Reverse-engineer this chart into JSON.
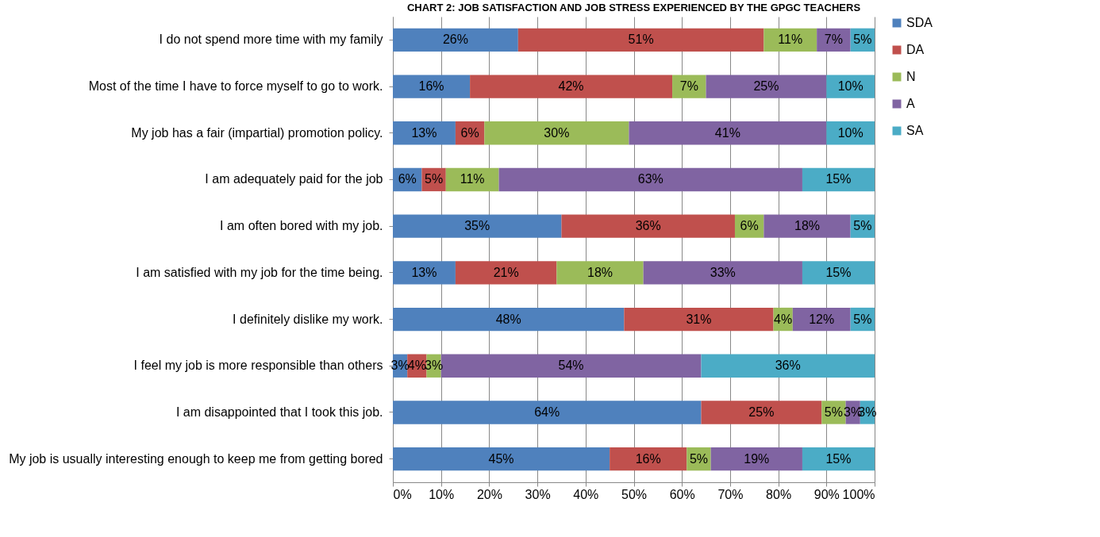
{
  "chart_data": {
    "type": "bar",
    "orientation": "horizontal",
    "stacked": true,
    "title": "CHART 2: JOB SATISFACTION AND JOB STRESS EXPERIENCED BY THE GPGC TEACHERS",
    "categories": [
      "I do not spend more time with my family",
      "Most of the time I have to force myself to go to work.",
      "My job has a fair (impartial) promotion policy.",
      "I am adequately paid for the job",
      "I am often bored with my job.",
      "I am satisfied with my job for the time being.",
      "I definitely dislike my work.",
      "I feel my job is more responsible than others",
      "I am disappointed that I took this job.",
      "My job is usually interesting enough to keep me from getting bored"
    ],
    "series": [
      {
        "name": "SDA",
        "color": "#4f81bd",
        "values": [
          26,
          16,
          13,
          6,
          35,
          13,
          48,
          3,
          64,
          45
        ],
        "value_labels": [
          "26%",
          "16%",
          "13%",
          "6%",
          "35%",
          "13%",
          "48%",
          "3%",
          "64%",
          "45%"
        ]
      },
      {
        "name": "DA",
        "color": "#c0504d",
        "values": [
          51,
          42,
          6,
          5,
          36,
          21,
          31,
          4,
          25,
          16
        ],
        "value_labels": [
          "51%",
          "42%",
          "6%",
          "5%",
          "36%",
          "21%",
          "31%",
          "4%",
          "25%",
          "16%"
        ]
      },
      {
        "name": "N",
        "color": "#9bbb59",
        "values": [
          11,
          7,
          30,
          11,
          6,
          18,
          4,
          3,
          5,
          5
        ],
        "value_labels": [
          "11%",
          "7%",
          "30%",
          "11%",
          "6%",
          "18%",
          "4%",
          "3%",
          "5%",
          "5%"
        ]
      },
      {
        "name": "A",
        "color": "#8064a2",
        "values": [
          7,
          25,
          41,
          63,
          18,
          33,
          12,
          54,
          3,
          19
        ],
        "value_labels": [
          "7%",
          "25%",
          "41%",
          "63%",
          "18%",
          "33%",
          "12%",
          "54%",
          "3%",
          "19%"
        ]
      },
      {
        "name": "SA",
        "color": "#4bacc6",
        "values": [
          5,
          10,
          10,
          15,
          5,
          15,
          5,
          36,
          3,
          15
        ],
        "value_labels": [
          "5%",
          "10%",
          "10%",
          "15%",
          "5%",
          "15%",
          "5%",
          "36%",
          "3%",
          "15%"
        ]
      }
    ],
    "xlim": [
      0,
      100
    ],
    "xticks": [
      {
        "value": 0,
        "label": "0%"
      },
      {
        "value": 10,
        "label": "10%"
      },
      {
        "value": 20,
        "label": "20%"
      },
      {
        "value": 30,
        "label": "30%"
      },
      {
        "value": 40,
        "label": "40%"
      },
      {
        "value": 50,
        "label": "50%"
      },
      {
        "value": 60,
        "label": "60%"
      },
      {
        "value": 70,
        "label": "70%"
      },
      {
        "value": 80,
        "label": "80%"
      },
      {
        "value": 90,
        "label": "90%"
      },
      {
        "value": 100,
        "label": "100%"
      }
    ],
    "grid": "x",
    "legend": "right"
  }
}
